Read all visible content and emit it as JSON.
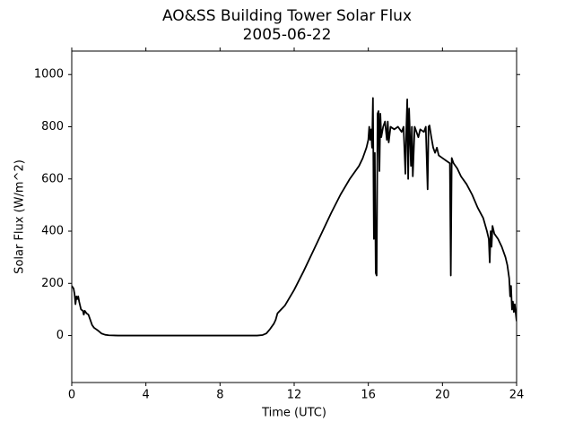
{
  "chart_data": {
    "type": "line",
    "title": "AO&SS Building Tower Solar Flux",
    "subtitle": "2005-06-22",
    "x_label": "Time (UTC)",
    "y_label": "Solar Flux (W/m^2)",
    "xlim": [
      0,
      24
    ],
    "xticks": [
      0,
      4,
      8,
      12,
      16,
      20,
      24
    ],
    "ylim": [
      -180,
      1090
    ],
    "yticks": [
      0,
      200,
      400,
      600,
      800,
      1000
    ],
    "grid": false,
    "x": [
      0,
      0.1,
      0.15,
      0.2,
      0.25,
      0.3,
      0.35,
      0.4,
      0.5,
      0.6,
      0.65,
      0.7,
      0.8,
      0.9,
      1.0,
      1.1,
      1.2,
      1.4,
      1.6,
      1.8,
      2.0,
      2.5,
      4,
      8,
      10,
      10.3,
      10.5,
      10.7,
      10.9,
      11.0,
      11.1,
      11.3,
      11.5,
      12,
      12.5,
      13,
      13.5,
      14,
      14.5,
      15,
      15.5,
      15.7,
      15.8,
      15.9,
      16.0,
      16.05,
      16.1,
      16.15,
      16.2,
      16.25,
      16.3,
      16.35,
      16.4,
      16.45,
      16.5,
      16.55,
      16.6,
      16.65,
      16.7,
      16.8,
      16.9,
      17.0,
      17.05,
      17.1,
      17.2,
      17.4,
      17.6,
      17.8,
      17.9,
      18.0,
      18.05,
      18.1,
      18.15,
      18.2,
      18.3,
      18.35,
      18.4,
      18.5,
      18.6,
      18.7,
      18.8,
      19.0,
      19.1,
      19.2,
      19.25,
      19.3,
      19.4,
      19.5,
      19.6,
      19.7,
      19.8,
      20.0,
      20.2,
      20.4,
      20.45,
      20.5,
      20.6,
      20.8,
      21.0,
      21.3,
      21.6,
      21.9,
      22.2,
      22.4,
      22.5,
      22.55,
      22.6,
      22.65,
      22.7,
      22.8,
      23.0,
      23.2,
      23.4,
      23.5,
      23.6,
      23.65,
      23.7,
      23.75,
      23.8,
      23.85,
      23.9,
      24
    ],
    "series": [
      {
        "name": "Solar Flux",
        "color": "#000000",
        "values": [
          190,
          180,
          160,
          120,
          150,
          140,
          150,
          130,
          100,
          95,
          80,
          95,
          85,
          80,
          60,
          40,
          30,
          20,
          8,
          3,
          1,
          0,
          0,
          0,
          0,
          2,
          8,
          25,
          45,
          60,
          85,
          100,
          115,
          175,
          245,
          320,
          395,
          470,
          540,
          600,
          650,
          680,
          700,
          720,
          750,
          800,
          750,
          790,
          720,
          910,
          370,
          700,
          240,
          230,
          850,
          860,
          630,
          850,
          760,
          800,
          820,
          750,
          820,
          740,
          800,
          790,
          800,
          780,
          800,
          620,
          790,
          905,
          600,
          870,
          650,
          800,
          610,
          800,
          780,
          760,
          790,
          780,
          800,
          560,
          800,
          805,
          760,
          720,
          700,
          720,
          690,
          680,
          670,
          660,
          230,
          680,
          660,
          640,
          610,
          580,
          540,
          490,
          450,
          400,
          370,
          280,
          400,
          340,
          420,
          390,
          370,
          340,
          300,
          270,
          220,
          150,
          190,
          100,
          130,
          90,
          120,
          55
        ]
      }
    ]
  }
}
